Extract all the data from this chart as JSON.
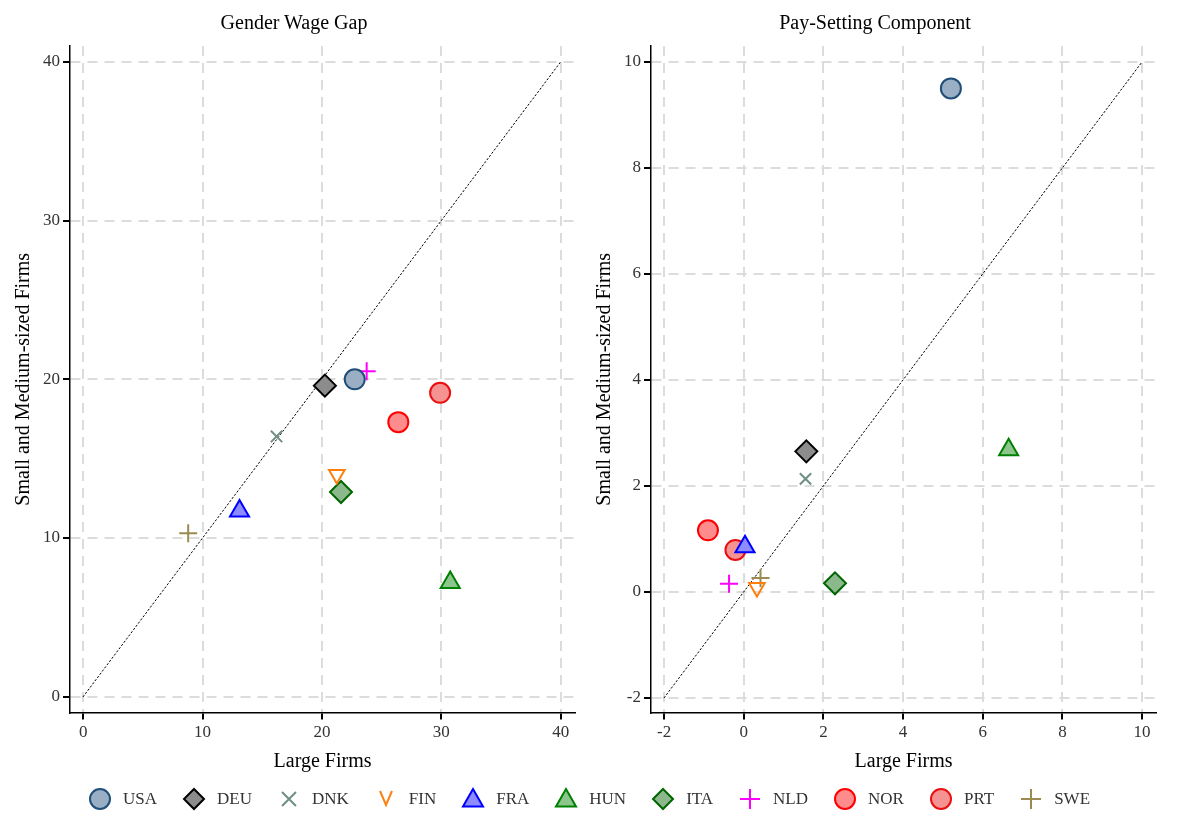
{
  "chart_data": [
    {
      "type": "scatter",
      "title": "Gender Wage Gap",
      "xlabel": "Large Firms",
      "ylabel": "Small and Medium-sized Firms",
      "xlim": [
        -1.1,
        41.2
      ],
      "ylim": [
        -1,
        41
      ],
      "xticks": [
        0,
        10,
        20,
        30,
        40
      ],
      "yticks": [
        0,
        10,
        20,
        30,
        40
      ],
      "grid": true,
      "legend": "bottom",
      "series": [
        {
          "name": "USA",
          "marker": "circle",
          "color": "#1f4e79",
          "x": [
            22.75
          ],
          "values": [
            20.0
          ]
        },
        {
          "name": "DEU",
          "marker": "diamond",
          "color": "#000000",
          "x": [
            20.25
          ],
          "values": [
            19.6
          ]
        },
        {
          "name": "DNK",
          "marker": "x",
          "color": "#6f8f86",
          "x": [
            16.2
          ],
          "values": [
            16.4
          ]
        },
        {
          "name": "FIN",
          "marker": "v",
          "color": "#ff7f0e",
          "x": [
            21.25
          ],
          "values": [
            14.0
          ]
        },
        {
          "name": "FRA",
          "marker": "triangle",
          "color": "#0000ff",
          "x": [
            13.1
          ],
          "values": [
            11.7
          ]
        },
        {
          "name": "HUN",
          "marker": "triangle",
          "color": "#008000",
          "x": [
            30.75
          ],
          "values": [
            7.2
          ]
        },
        {
          "name": "ITA",
          "marker": "diamond",
          "color": "#006400",
          "x": [
            21.6
          ],
          "values": [
            12.9
          ]
        },
        {
          "name": "NLD",
          "marker": "cross",
          "color": "#ff00ff",
          "x": [
            23.75
          ],
          "values": [
            20.5
          ]
        },
        {
          "name": "NOR",
          "marker": "circle",
          "color": "#ff0000",
          "x": [
            26.4
          ],
          "values": [
            17.3
          ]
        },
        {
          "name": "PRT",
          "marker": "circle",
          "color": "#e81010",
          "x": [
            29.9
          ],
          "values": [
            19.15
          ]
        },
        {
          "name": "SWE",
          "marker": "cross",
          "color": "#9c8b4f",
          "x": [
            8.8
          ],
          "values": [
            10.3
          ]
        },
        {
          "type": "line",
          "marker": "none",
          "line_style": "dotted",
          "color": "#000000",
          "x": [
            0,
            40
          ],
          "values": [
            0,
            40
          ]
        }
      ]
    },
    {
      "type": "scatter",
      "title": "Pay-Setting Component",
      "xlabel": "Large Firms",
      "ylabel": "Small and Medium-sized Firms",
      "xlim": [
        -2.33,
        10.35
      ],
      "ylim": [
        -2.28,
        10.3
      ],
      "xticks": [
        -2,
        0,
        2,
        4,
        6,
        8,
        10
      ],
      "yticks": [
        -2,
        0,
        2,
        4,
        6,
        8,
        10
      ],
      "grid": true,
      "series": [
        {
          "marker": "circle",
          "color": "#1f4e79",
          "x": [
            5.2
          ],
          "values": [
            9.5
          ]
        },
        {
          "marker": "diamond",
          "color": "#000000",
          "x": [
            1.57
          ],
          "values": [
            2.65
          ]
        },
        {
          "marker": "x",
          "color": "#6f8f86",
          "x": [
            1.55
          ],
          "values": [
            2.13
          ]
        },
        {
          "marker": "v",
          "color": "#ff7f0e",
          "x": [
            0.33
          ],
          "values": [
            0.08
          ]
        },
        {
          "marker": "triangle",
          "color": "#0000ff",
          "x": [
            0.03
          ],
          "values": [
            0.85
          ]
        },
        {
          "marker": "triangle",
          "color": "#008000",
          "x": [
            6.65
          ],
          "values": [
            2.68
          ]
        },
        {
          "marker": "diamond",
          "color": "#006400",
          "x": [
            2.29
          ],
          "values": [
            0.16
          ]
        },
        {
          "marker": "cross",
          "color": "#ff00ff",
          "x": [
            -0.37
          ],
          "values": [
            0.15
          ]
        },
        {
          "marker": "circle",
          "color": "#ff0000",
          "x": [
            -0.9
          ],
          "values": [
            1.16
          ]
        },
        {
          "marker": "circle",
          "color": "#e81010",
          "x": [
            -0.21
          ],
          "values": [
            0.79
          ]
        },
        {
          "marker": "cross",
          "color": "#9c8b4f",
          "x": [
            0.42
          ],
          "values": [
            0.26
          ]
        },
        {
          "type": "line",
          "marker": "none",
          "line_style": "dotted",
          "color": "#000000",
          "x": [
            -2,
            10
          ],
          "values": [
            -2,
            10
          ]
        }
      ]
    }
  ]
}
